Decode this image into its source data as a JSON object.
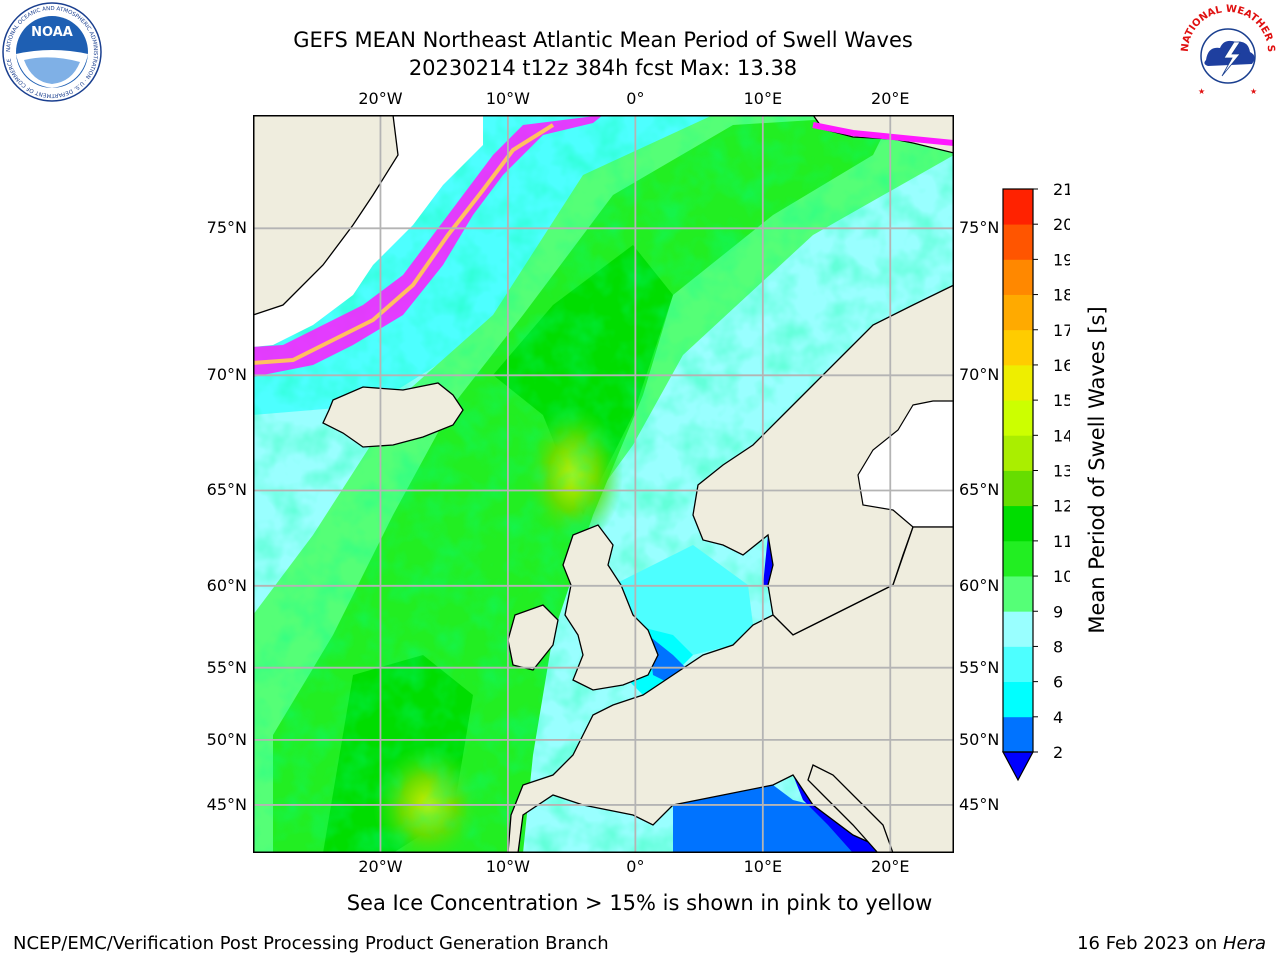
{
  "header": {
    "title_line1": "GEFS MEAN Northeast Atlantic Mean Period of Swell Waves",
    "title_line2": "20230214 t12z 384h fcst   Max: 13.38"
  },
  "logos": {
    "left": {
      "text": "NOAA",
      "ring_text": "NATIONAL OCEANIC AND ATMOSPHERIC ADMINISTRATION · U.S. DEPARTMENT OF COMMERCE"
    },
    "right": {
      "ring_text": "NATIONAL WEATHER SERVICE"
    }
  },
  "map": {
    "extent": {
      "lon_min": -30,
      "lon_max": 25,
      "lat_min": 41,
      "lat_max": 78
    },
    "lon_ticks": [
      {
        "lon": -20,
        "label": "20°W"
      },
      {
        "lon": -10,
        "label": "10°W"
      },
      {
        "lon": 0,
        "label": "0°"
      },
      {
        "lon": 10,
        "label": "10°E"
      },
      {
        "lon": 20,
        "label": "20°E"
      }
    ],
    "lat_ticks": [
      {
        "lat": 75,
        "label": "75°N"
      },
      {
        "lat": 70,
        "label": "70°N"
      },
      {
        "lat": 65,
        "label": "65°N"
      },
      {
        "lat": 60,
        "label": "60°N"
      },
      {
        "lat": 55,
        "label": "55°N"
      },
      {
        "lat": 50,
        "label": "50°N"
      },
      {
        "lat": 45,
        "label": "45°N"
      }
    ],
    "colors": {
      "land": "#efedde",
      "ice": "#ffffff",
      "ocean_base": "#4dffff",
      "grid": "#b4b4b4",
      "ice_edge": [
        "#ff1aff",
        "#ff66cc",
        "#ffc060"
      ]
    }
  },
  "colorbar": {
    "label": "Mean Period of Swell Waves [s]",
    "levels": [
      2,
      4,
      6,
      8,
      9,
      10,
      11,
      12,
      13,
      14,
      15,
      16,
      17,
      18,
      19,
      20,
      21
    ],
    "tick_labels": [
      "2",
      "4",
      "6",
      "8",
      "9",
      "10",
      "11",
      "12",
      "13",
      "14",
      "15",
      "16",
      "17",
      "18",
      "19",
      "20",
      "21"
    ],
    "colors": [
      "#0073ff",
      "#00ffff",
      "#4dffff",
      "#99ffff",
      "#55ff77",
      "#22ee22",
      "#00dd00",
      "#66dd00",
      "#aaee00",
      "#ccff00",
      "#eeee00",
      "#ffcc00",
      "#ffaa00",
      "#ff8800",
      "#ff5500",
      "#ff2200"
    ],
    "extend_low_color": "#0000ff"
  },
  "caption": "Sea Ice Concentration > 15% is shown in pink to yellow",
  "footer": {
    "left": "NCEP/EMC/Verification Post Processing Product Generation Branch",
    "right_date": "16 Feb 2023 on ",
    "right_system": "Hera"
  }
}
